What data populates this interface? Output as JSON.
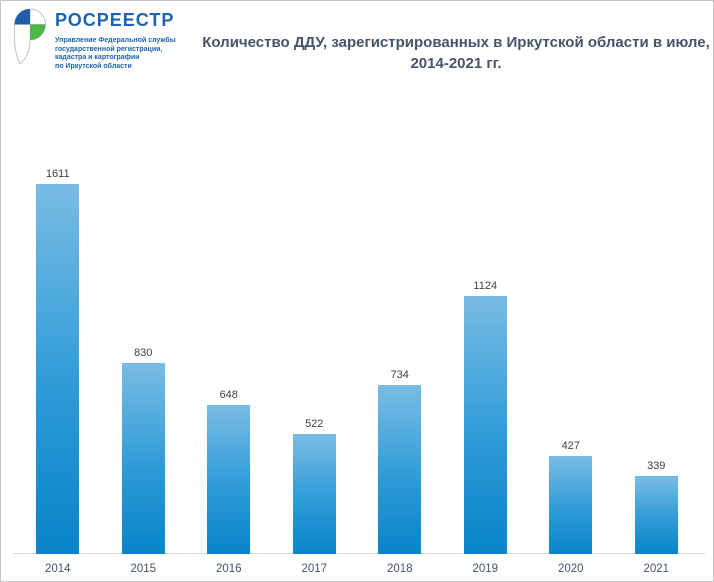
{
  "logo": {
    "title": "РОСРЕЕСТР",
    "subtitle_lines": [
      "Управление Федеральной службы",
      "государственной регистрации,",
      "кадастра и картографии",
      "по Иркутской области"
    ],
    "brand_blue": "#1c63b2",
    "brand_green": "#4cb748"
  },
  "title": {
    "lines": [
      "Количество ДДУ, зарегистрированных в Иркутской области в июле,",
      "2014-2021 гг."
    ]
  },
  "chart_data": {
    "type": "bar",
    "categories": [
      "2014",
      "2015",
      "2016",
      "2017",
      "2018",
      "2019",
      "2020",
      "2021"
    ],
    "values": [
      1611,
      830,
      648,
      522,
      734,
      1124,
      427,
      339
    ],
    "title": "Количество ДДУ, зарегистрированных в Иркутской области в июле, 2014-2021 гг.",
    "xlabel": "",
    "ylabel": "",
    "ylim": [
      0,
      1700
    ],
    "grid": false,
    "legend": "none",
    "data_labels": true,
    "bar_gradient_top": "#79bce4",
    "bar_gradient_bottom": "#0884c9",
    "axis_line_color": "#d9d9d9",
    "value_label_color": "#3f3f3f",
    "tick_label_color": "#44546a",
    "title_color": "#44546a"
  }
}
